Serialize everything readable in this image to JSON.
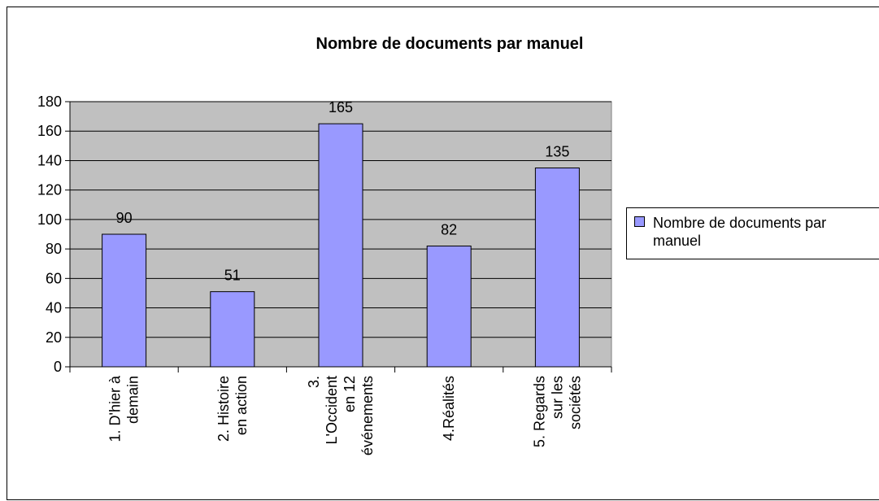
{
  "chart_data": {
    "type": "bar",
    "title": "Nombre de documents par manuel",
    "categories": [
      "1. D'hier à demain",
      "2. Histoire en action",
      "3. L'Occident en 12 événements",
      "4.Réalités",
      "5. Regards sur les sociétés"
    ],
    "series": [
      {
        "name": "Nombre de documents par manuel",
        "color": "#9999ff",
        "values": [
          90,
          51,
          165,
          82,
          135
        ]
      }
    ],
    "ylim": [
      0,
      180
    ],
    "yticks": [
      0,
      20,
      40,
      60,
      80,
      100,
      120,
      140,
      160,
      180
    ],
    "grid": true,
    "legend": "right"
  }
}
